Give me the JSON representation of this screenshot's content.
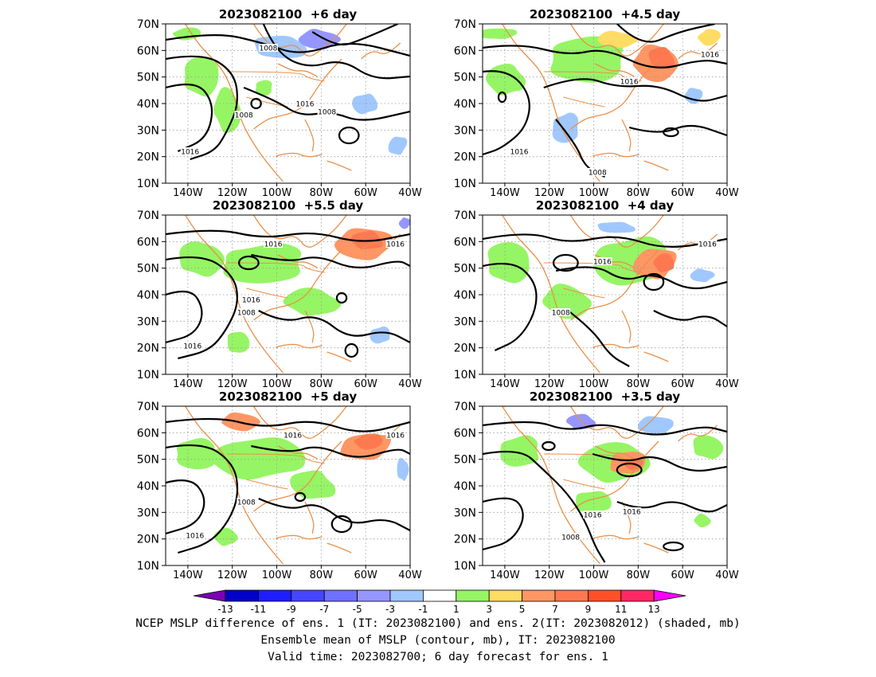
{
  "panels": [
    {
      "title": "2023082100  +6 day",
      "labels": [
        "1008",
        "1008",
        "1016",
        "1008",
        "1016"
      ]
    },
    {
      "title": "2023082100  +4.5 day",
      "labels": [
        "1016",
        "1016",
        "1016",
        "1008"
      ]
    },
    {
      "title": "2023082100  +5.5 day",
      "labels": [
        "1016",
        "1016",
        "1016",
        "1008",
        "1016"
      ]
    },
    {
      "title": "2023082100  +4 day",
      "labels": [
        "1016",
        "1016",
        "1008"
      ]
    },
    {
      "title": "2023082100  +5 day",
      "labels": [
        "1016",
        "1016",
        "1008",
        "1016"
      ]
    },
    {
      "title": "2023082100  +3.5 day",
      "labels": [
        "1016",
        "1016",
        "1008"
      ]
    }
  ],
  "axes": {
    "lat_ticks": [
      "70N",
      "60N",
      "50N",
      "40N",
      "30N",
      "20N",
      "10N"
    ],
    "lon_ticks": [
      "140W",
      "120W",
      "100W",
      "80W",
      "60W",
      "40W"
    ]
  },
  "colorbar": {
    "ticks": [
      "-13",
      "-11",
      "-9",
      "-7",
      "-5",
      "-3",
      "-1",
      "1",
      "3",
      "5",
      "7",
      "9",
      "11",
      "13"
    ],
    "colors": [
      "#7b00b4",
      "#0000c8",
      "#1e1eff",
      "#4646ff",
      "#7070ff",
      "#9696ff",
      "#a0c8ff",
      "#ffffff",
      "#96f564",
      "#ffdc64",
      "#ff9664",
      "#ff7850",
      "#ff5028",
      "#ff2864",
      "#ff00ff"
    ]
  },
  "caption": {
    "line1": "NCEP MSLP difference of ens. 1 (IT: 2023082100) and ens. 2(IT: 2023082012) (shaded, mb)",
    "line2": "Ensemble mean of MSLP (contour, mb), IT: 2023082100",
    "line3": "Valid time: 2023082700; 6 day forecast for ens. 1"
  }
}
